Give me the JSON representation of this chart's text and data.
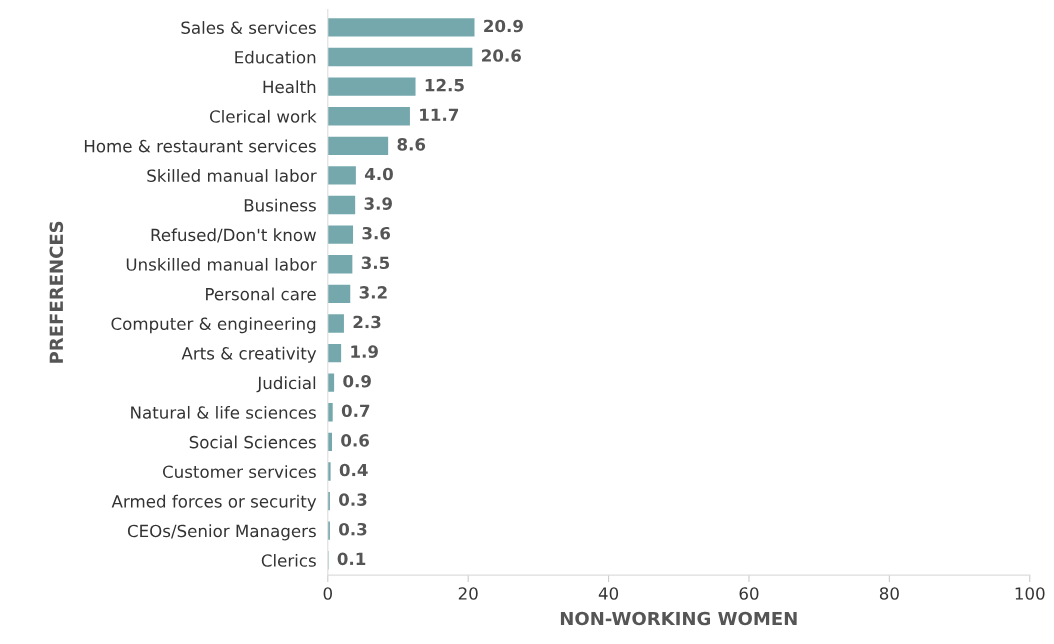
{
  "chart_data": {
    "type": "bar",
    "orientation": "horizontal",
    "xlabel": "NON-WORKING WOMEN",
    "ylabel": "PREFERENCES",
    "categories": [
      "Sales & services",
      "Education",
      "Health",
      "Clerical work",
      "Home & restaurant services",
      "Skilled manual labor",
      "Business",
      "Refused/Don't know",
      "Unskilled manual labor",
      "Personal care",
      "Computer & engineering",
      "Arts & creativity",
      "Judicial",
      "Natural & life sciences",
      "Social Sciences",
      "Customer services",
      "Armed forces or security",
      "CEOs/Senior Managers",
      "Clerics"
    ],
    "values": [
      20.9,
      20.6,
      12.5,
      11.7,
      8.6,
      4.0,
      3.9,
      3.6,
      3.5,
      3.2,
      2.3,
      1.9,
      0.9,
      0.7,
      0.6,
      0.4,
      0.3,
      0.3,
      0.1
    ],
    "value_labels": [
      "20.9",
      "20.6",
      "12.5",
      "11.7",
      "8.6",
      "4.0",
      "3.9",
      "3.6",
      "3.5",
      "3.2",
      "2.3",
      "1.9",
      "0.9",
      "0.7",
      "0.6",
      "0.4",
      "0.3",
      "0.3",
      "0.1"
    ],
    "color": "#74a8ad",
    "xlim": [
      0,
      100
    ],
    "xticks": [
      0,
      20,
      40,
      60,
      80,
      100
    ],
    "grid": false,
    "legend": false
  }
}
